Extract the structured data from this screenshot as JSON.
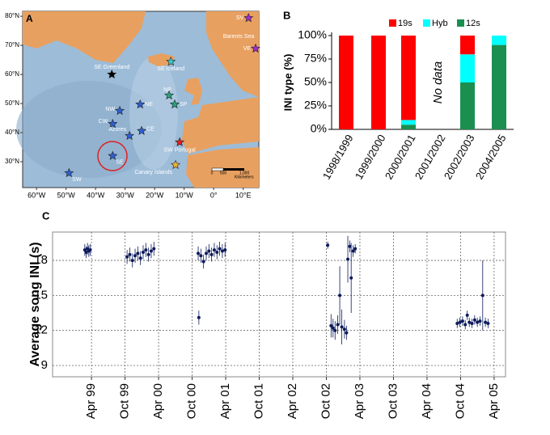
{
  "chart_data": [
    {
      "type": "map",
      "panel": "A",
      "xlim": [
        -64.7,
        15.3
      ],
      "ylim": [
        21.1,
        81.7
      ],
      "xticks": [
        {
          "value": -60,
          "label": "60°W"
        },
        {
          "value": -50,
          "label": "50°W"
        },
        {
          "value": -40,
          "label": "40°W"
        },
        {
          "value": -30,
          "label": "30°W"
        },
        {
          "value": -20,
          "label": "20°W"
        },
        {
          "value": -10,
          "label": "10°W"
        },
        {
          "value": 0,
          "label": "0°"
        },
        {
          "value": 10,
          "label": "10°E"
        }
      ],
      "yticks": [
        {
          "value": 30,
          "label": "30°N"
        },
        {
          "value": 40,
          "label": "40°N"
        },
        {
          "value": 50,
          "label": "50°N"
        },
        {
          "value": 60,
          "label": "60°N"
        },
        {
          "value": 70,
          "label": "70°N"
        },
        {
          "value": 80,
          "label": "80°N"
        }
      ],
      "categories": [
        "SV",
        "VE",
        "SE Greenland",
        "SE Iceland",
        "NW",
        "NE",
        "NP",
        "SP",
        "CW",
        "Azores",
        "CE",
        "SW Portugal",
        "SE",
        "Canary Islands",
        "SW"
      ],
      "x": [
        11.8,
        14.2,
        -34.5,
        -14.5,
        -31.8,
        -24.9,
        -15.1,
        -13.2,
        -34.2,
        -28.5,
        -24.4,
        -11.5,
        -34.2,
        -12.9,
        -49
      ],
      "values": [
        79.4,
        68.9,
        60,
        64.4,
        47.5,
        49.7,
        52.8,
        49.7,
        43,
        38.9,
        40.6,
        36.7,
        32,
        28.9,
        26.1
      ],
      "colors": [
        "#9b30c8",
        "#9b30c8",
        "#000000",
        "#3cc8c8",
        "#2f5fd0",
        "#2f5fd0",
        "#2aa07a",
        "#2aa07a",
        "#2f5fd0",
        "#2f5fd0",
        "#2f5fd0",
        "#e02020",
        "#2f5fd0",
        "#f0b030",
        "#2f5fd0"
      ],
      "annotations": [
        "Barents Sea"
      ],
      "scale_labels": [
        "0",
        "500",
        "1,000",
        "Kilometers"
      ]
    },
    {
      "type": "bar",
      "panel": "B",
      "stacked": true,
      "legend": "top",
      "ylabel": "INI type (%)",
      "categories": [
        "1998/1999",
        "1999/2000",
        "2000/2001",
        "2001/2002",
        "2002/2003",
        "2004/2005"
      ],
      "series": [
        {
          "name": "19s",
          "color": "#ff0000",
          "values": [
            100,
            100,
            90,
            null,
            20,
            0
          ]
        },
        {
          "name": "Hyb",
          "color": "#00ffff",
          "values": [
            0,
            0,
            5,
            null,
            30,
            10
          ]
        },
        {
          "name": "12s",
          "color": "#1a8f4f",
          "values": [
            0,
            0,
            5,
            null,
            50,
            90
          ]
        }
      ],
      "ylim": [
        0,
        100
      ],
      "yticks": [
        {
          "value": 0,
          "label": "0%"
        },
        {
          "value": 25,
          "label": "25%"
        },
        {
          "value": 50,
          "label": "50%"
        },
        {
          "value": 75,
          "label": "75%"
        },
        {
          "value": 100,
          "label": "100%"
        }
      ],
      "annotations": [
        "No data"
      ]
    },
    {
      "type": "scatter",
      "panel": "C",
      "grid": true,
      "color": "#0d1a5c",
      "ylabel": "Average song INI (s)",
      "xlim": [
        1998.67,
        2005.42
      ],
      "ylim": [
        8.03,
        20.43
      ],
      "xticks": [
        {
          "value": 1999.25,
          "label": "Apr 99"
        },
        {
          "value": 1999.75,
          "label": "Oct 99"
        },
        {
          "value": 2000.25,
          "label": "Apr 00"
        },
        {
          "value": 2000.75,
          "label": "Oct 00"
        },
        {
          "value": 2001.25,
          "label": "Apr 01"
        },
        {
          "value": 2001.75,
          "label": "Oct 01"
        },
        {
          "value": 2002.25,
          "label": "Apr 02"
        },
        {
          "value": 2002.75,
          "label": "Oct 02"
        },
        {
          "value": 2003.25,
          "label": "Apr 03"
        },
        {
          "value": 2003.75,
          "label": "Oct 03"
        },
        {
          "value": 2004.25,
          "label": "Apr 04"
        },
        {
          "value": 2004.75,
          "label": "Oct 04"
        },
        {
          "value": 2005.25,
          "label": "Apr 05"
        }
      ],
      "yticks": [
        9,
        12,
        15,
        18
      ],
      "x": [
        1999.15,
        1999.17,
        1999.19,
        1999.21,
        1999.23,
        1999.78,
        1999.82,
        1999.86,
        1999.9,
        1999.94,
        1999.98,
        2000.02,
        2000.06,
        2000.1,
        2000.14,
        2000.18,
        2000.84,
        2000.85,
        2000.88,
        2000.92,
        2000.96,
        2001.0,
        2001.04,
        2001.08,
        2001.12,
        2001.16,
        2001.2,
        2001.24,
        2002.77,
        2002.82,
        2002.85,
        2002.88,
        2002.92,
        2002.95,
        2002.98,
        2003.02,
        2003.05,
        2003.07,
        2003.1,
        2003.12,
        2003.15,
        2003.18,
        2004.7,
        2004.74,
        2004.78,
        2004.82,
        2004.85,
        2004.88,
        2004.92,
        2004.96,
        2005.0,
        2005.04,
        2005.08,
        2005.12,
        2005.16
      ],
      "values": [
        18.9,
        18.7,
        19.0,
        18.8,
        18.9,
        18.3,
        18.5,
        18.0,
        18.4,
        18.6,
        18.2,
        18.7,
        18.9,
        18.5,
        18.8,
        19.0,
        18.6,
        13.1,
        18.4,
        17.9,
        18.6,
        18.8,
        18.5,
        18.9,
        18.7,
        19.0,
        18.8,
        18.9,
        19.3,
        12.4,
        12.2,
        12.0,
        12.5,
        15.0,
        12.3,
        12.1,
        11.8,
        18.1,
        19.2,
        16.5,
        18.8,
        19.0,
        12.6,
        12.7,
        12.8,
        12.5,
        13.3,
        12.7,
        12.6,
        12.9,
        12.7,
        12.8,
        15.0,
        12.7,
        12.6
      ],
      "errors": [
        0.5,
        0.5,
        0.5,
        0.5,
        0.5,
        0.6,
        0.6,
        0.6,
        0.6,
        0.6,
        0.6,
        0.6,
        0.6,
        0.6,
        0.6,
        0.6,
        0.6,
        0.6,
        0.6,
        0.6,
        0.6,
        0.6,
        0.6,
        0.6,
        0.6,
        0.6,
        0.6,
        0.6,
        0.3,
        1.0,
        0.8,
        0.8,
        0.8,
        2.5,
        1.5,
        0.8,
        0.6,
        2.0,
        0.5,
        3.0,
        0.5,
        0.4,
        0.4,
        0.4,
        0.4,
        0.4,
        0.4,
        0.4,
        0.4,
        0.4,
        0.4,
        0.4,
        3.0,
        0.4,
        0.4
      ]
    }
  ]
}
